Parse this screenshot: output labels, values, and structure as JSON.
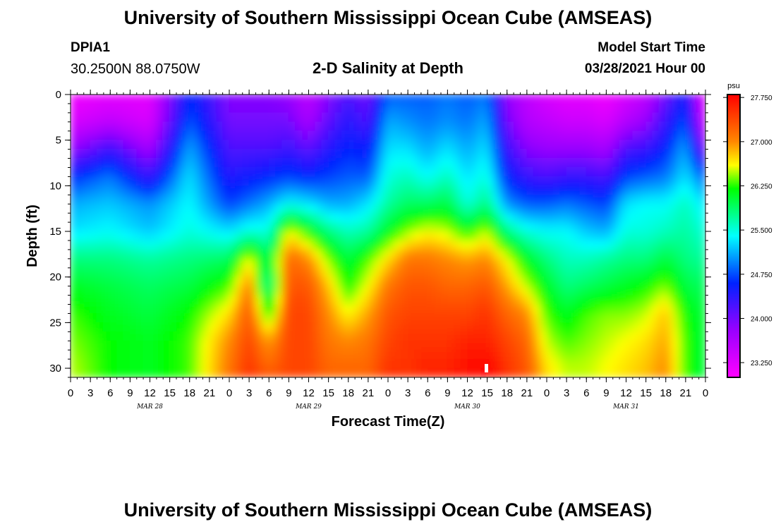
{
  "header": {
    "title": "University of Southern Mississippi Ocean Cube (AMSEAS)",
    "station_id": "DPIA1",
    "coordinates": "30.2500N  88.0750W",
    "subtitle": "2-D Salinity at Depth",
    "model_start_label": "Model Start Time",
    "model_start_value": "03/28/2021 Hour 00"
  },
  "footer": {
    "title": "University of Southern Mississippi Ocean Cube (AMSEAS)"
  },
  "chart_data": {
    "type": "heatmap",
    "title": "2-D Salinity at Depth",
    "xlabel": "Forecast Time(Z)",
    "ylabel": "Depth (ft)",
    "x_range_hours": [
      0,
      96
    ],
    "ylim": [
      0,
      31
    ],
    "y_ticks": [
      0,
      5,
      10,
      15,
      20,
      25,
      30
    ],
    "x_tick_labels": [
      "0",
      "3",
      "6",
      "9",
      "12",
      "15",
      "18",
      "21",
      "0",
      "3",
      "6",
      "9",
      "12",
      "15",
      "18",
      "21",
      "0",
      "3",
      "6",
      "9",
      "12",
      "15",
      "18",
      "21",
      "0",
      "3",
      "6",
      "9",
      "12",
      "15",
      "18",
      "21",
      "0"
    ],
    "date_labels": [
      {
        "label": "MAR 28",
        "hour": 12
      },
      {
        "label": "MAR 29",
        "hour": 36
      },
      {
        "label": "MAR 30",
        "hour": 60
      },
      {
        "label": "MAR 31",
        "hour": 84
      }
    ],
    "colorbar": {
      "unit": "psu",
      "range": [
        23.0,
        27.8
      ],
      "tick_labels": [
        "27.750",
        "27.000",
        "26.250",
        "25.500",
        "24.750",
        "24.000",
        "23.250"
      ],
      "tick_values": [
        27.75,
        27.0,
        26.25,
        25.5,
        24.75,
        24.0,
        23.25
      ]
    },
    "profile_columns": {
      "note": "salinity (psu) at depths 0,3,6,9,12,15,18,21,24,27,30,31 ft for each forecast hour",
      "depths_ft": [
        0,
        3,
        6,
        9,
        12,
        15,
        18,
        21,
        24,
        27,
        30,
        31
      ],
      "hours": [
        0,
        6,
        12,
        18,
        24,
        27,
        30,
        33,
        36,
        39,
        42,
        45,
        48,
        51,
        54,
        57,
        60,
        63,
        66,
        69,
        72,
        75,
        78,
        81,
        84,
        87,
        90,
        93,
        96
      ],
      "values": [
        [
          23.1,
          23.3,
          23.8,
          24.6,
          25.1,
          25.3,
          25.8,
          26.1,
          26.3,
          26.4,
          26.5,
          26.5
        ],
        [
          23.2,
          23.5,
          24.3,
          24.9,
          25.2,
          25.4,
          25.8,
          26.0,
          26.1,
          26.2,
          26.2,
          26.2
        ],
        [
          23.2,
          23.3,
          23.7,
          24.3,
          25.0,
          25.2,
          25.7,
          25.9,
          26.0,
          26.1,
          26.1,
          26.1
        ],
        [
          24.6,
          24.8,
          25.1,
          25.3,
          25.4,
          25.5,
          25.8,
          26.0,
          26.2,
          26.3,
          26.3,
          26.3
        ],
        [
          23.9,
          24.0,
          24.2,
          24.4,
          24.7,
          25.3,
          25.9,
          26.3,
          26.7,
          27.0,
          27.1,
          27.1
        ],
        [
          23.9,
          24.0,
          24.2,
          24.5,
          24.9,
          25.5,
          26.6,
          27.1,
          27.3,
          27.4,
          27.5,
          27.5
        ],
        [
          23.9,
          24.0,
          24.2,
          24.6,
          25.1,
          25.5,
          25.9,
          25.6,
          26.2,
          26.9,
          27.2,
          27.3
        ],
        [
          23.8,
          24.0,
          24.3,
          24.7,
          25.4,
          26.6,
          27.2,
          27.3,
          27.4,
          27.4,
          27.4,
          27.4
        ],
        [
          23.5,
          23.7,
          24.1,
          24.6,
          25.3,
          26.2,
          27.0,
          27.3,
          27.4,
          27.4,
          27.4,
          27.4
        ],
        [
          23.9,
          24.1,
          24.4,
          24.7,
          25.1,
          25.8,
          26.4,
          26.8,
          27.0,
          27.1,
          27.2,
          27.2
        ],
        [
          24.2,
          24.4,
          24.6,
          24.8,
          25.1,
          25.6,
          26.0,
          26.2,
          26.6,
          27.0,
          27.2,
          27.2
        ],
        [
          24.0,
          24.2,
          24.5,
          24.8,
          25.3,
          25.7,
          26.3,
          26.6,
          26.9,
          27.1,
          27.2,
          27.2
        ],
        [
          24.8,
          25.1,
          25.3,
          25.5,
          25.7,
          26.1,
          26.7,
          27.1,
          27.3,
          27.4,
          27.5,
          27.5
        ],
        [
          24.8,
          25.0,
          25.3,
          25.6,
          25.9,
          26.4,
          27.1,
          27.3,
          27.4,
          27.5,
          27.5,
          27.5
        ],
        [
          24.8,
          24.9,
          25.1,
          25.4,
          25.9,
          26.6,
          27.1,
          27.3,
          27.4,
          27.5,
          27.6,
          27.6
        ],
        [
          24.9,
          25.0,
          25.3,
          25.6,
          26.0,
          26.5,
          27.0,
          27.2,
          27.4,
          27.5,
          27.6,
          27.6
        ],
        [
          24.8,
          24.9,
          25.1,
          25.3,
          25.5,
          26.2,
          26.9,
          27.2,
          27.4,
          27.6,
          27.7,
          27.7
        ],
        [
          24.9,
          25.1,
          25.3,
          25.5,
          25.8,
          26.5,
          27.0,
          27.3,
          27.5,
          27.6,
          27.8,
          27.8
        ],
        [
          23.8,
          24.0,
          24.3,
          24.6,
          25.0,
          25.8,
          26.6,
          26.9,
          27.2,
          27.4,
          27.5,
          27.5
        ],
        [
          23.5,
          23.6,
          23.9,
          24.3,
          24.8,
          25.5,
          26.1,
          26.5,
          27.0,
          27.2,
          27.3,
          27.3
        ],
        [
          23.3,
          23.5,
          23.8,
          24.2,
          24.8,
          25.4,
          25.8,
          26.1,
          26.3,
          26.5,
          26.7,
          26.7
        ],
        [
          23.2,
          23.4,
          23.8,
          24.3,
          24.9,
          25.4,
          25.6,
          25.8,
          26.1,
          26.3,
          26.5,
          26.5
        ],
        [
          23.2,
          23.4,
          23.8,
          24.3,
          24.8,
          25.2,
          25.6,
          25.9,
          26.3,
          26.4,
          26.5,
          26.5
        ],
        [
          23.1,
          23.3,
          23.7,
          24.2,
          24.7,
          25.1,
          25.7,
          26.0,
          26.4,
          26.5,
          26.6,
          26.6
        ],
        [
          23.3,
          23.6,
          24.2,
          24.7,
          25.3,
          25.5,
          25.8,
          26.1,
          26.4,
          26.6,
          26.7,
          26.7
        ],
        [
          23.5,
          23.8,
          24.3,
          24.8,
          25.4,
          25.5,
          25.8,
          26.2,
          26.5,
          26.7,
          26.8,
          26.8
        ],
        [
          24.0,
          24.3,
          24.6,
          24.9,
          25.4,
          25.6,
          26.0,
          26.4,
          26.8,
          26.9,
          27.0,
          27.0
        ],
        [
          24.5,
          24.8,
          25.1,
          25.3,
          25.6,
          25.7,
          25.8,
          26.0,
          26.2,
          26.3,
          26.3,
          26.3
        ],
        [
          23.1,
          23.3,
          23.9,
          24.8,
          25.3,
          25.5,
          25.7,
          25.9,
          26.0,
          26.0,
          26.0,
          26.0
        ]
      ]
    }
  }
}
